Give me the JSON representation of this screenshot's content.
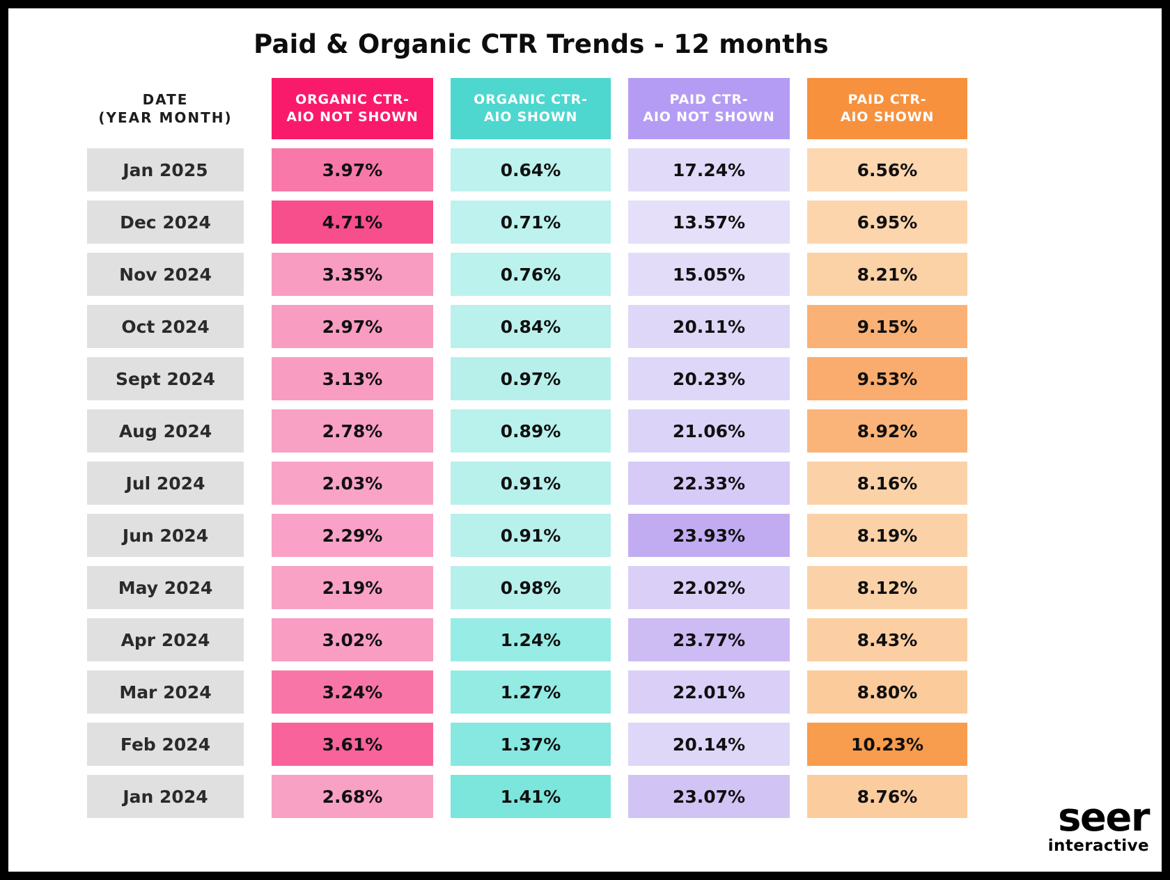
{
  "title": "Paid & Organic CTR Trends - 12 months",
  "colors": {
    "header_organic_not_shown": "#FA1A6C",
    "header_organic_shown": "#4DD7CF",
    "header_paid_not_shown": "#B49CF4",
    "header_paid_shown": "#F7913D",
    "date_cell_bg": "#E0E0E0",
    "frame": "#000000",
    "background": "#FFFFFF"
  },
  "table": {
    "date_header": {
      "line1": "DATE",
      "line2": "(YEAR MONTH)"
    },
    "headers": [
      {
        "line1": "ORGANIC CTR-",
        "line2": "AIO NOT SHOWN",
        "bg": "#FA1A6C"
      },
      {
        "line1": "ORGANIC CTR-",
        "line2": "AIO SHOWN",
        "bg": "#4DD7CF"
      },
      {
        "line1": "PAID CTR-",
        "line2": "AIO NOT SHOWN",
        "bg": "#B49CF4"
      },
      {
        "line1": "PAID CTR-",
        "line2": "AIO SHOWN",
        "bg": "#F7913D"
      }
    ],
    "rows": [
      {
        "date": "Jan 2025",
        "cells": [
          {
            "value": "3.97%",
            "bg": "#F878A9"
          },
          {
            "value": "0.64%",
            "bg": "#BDF2EE"
          },
          {
            "value": "17.24%",
            "bg": "#E1DAF9"
          },
          {
            "value": "6.56%",
            "bg": "#FCD7B0"
          }
        ]
      },
      {
        "date": "Dec 2024",
        "cells": [
          {
            "value": "4.71%",
            "bg": "#F74E8C"
          },
          {
            "value": "0.71%",
            "bg": "#BDF2EE"
          },
          {
            "value": "13.57%",
            "bg": "#E5DFFA"
          },
          {
            "value": "6.95%",
            "bg": "#FCD5AD"
          }
        ]
      },
      {
        "date": "Nov 2024",
        "cells": [
          {
            "value": "3.35%",
            "bg": "#F99CC2"
          },
          {
            "value": "0.76%",
            "bg": "#BBF2ED"
          },
          {
            "value": "15.05%",
            "bg": "#E3DCF9"
          },
          {
            "value": "8.21%",
            "bg": "#FBD1A6"
          }
        ]
      },
      {
        "date": "Oct 2024",
        "cells": [
          {
            "value": "2.97%",
            "bg": "#F99CC2"
          },
          {
            "value": "0.84%",
            "bg": "#BAF1EC"
          },
          {
            "value": "20.11%",
            "bg": "#DFD7F8"
          },
          {
            "value": "9.15%",
            "bg": "#FAB175"
          }
        ]
      },
      {
        "date": "Sept 2024",
        "cells": [
          {
            "value": "3.13%",
            "bg": "#F99CC2"
          },
          {
            "value": "0.97%",
            "bg": "#B7F0EB"
          },
          {
            "value": "20.23%",
            "bg": "#DFD7F8"
          },
          {
            "value": "9.53%",
            "bg": "#F9AC6D"
          }
        ]
      },
      {
        "date": "Aug 2024",
        "cells": [
          {
            "value": "2.78%",
            "bg": "#F9A0C5"
          },
          {
            "value": "0.89%",
            "bg": "#B9F1EC"
          },
          {
            "value": "21.06%",
            "bg": "#DCD3F8"
          },
          {
            "value": "8.92%",
            "bg": "#FAB47A"
          }
        ]
      },
      {
        "date": "Jul 2024",
        "cells": [
          {
            "value": "2.03%",
            "bg": "#F9A3C7"
          },
          {
            "value": "0.91%",
            "bg": "#B8F0EC"
          },
          {
            "value": "22.33%",
            "bg": "#D6CAF6"
          },
          {
            "value": "8.16%",
            "bg": "#FBD2A7"
          }
        ]
      },
      {
        "date": "Jun 2024",
        "cells": [
          {
            "value": "2.29%",
            "bg": "#F9A1C6"
          },
          {
            "value": "0.91%",
            "bg": "#B8F0EC"
          },
          {
            "value": "23.93%",
            "bg": "#C2ACF1"
          },
          {
            "value": "8.19%",
            "bg": "#FBD2A7"
          }
        ]
      },
      {
        "date": "May 2024",
        "cells": [
          {
            "value": "2.19%",
            "bg": "#F9A2C6"
          },
          {
            "value": "0.98%",
            "bg": "#B6F0EB"
          },
          {
            "value": "22.02%",
            "bg": "#DAD0F7"
          },
          {
            "value": "8.12%",
            "bg": "#FBD2A8"
          }
        ]
      },
      {
        "date": "Apr 2024",
        "cells": [
          {
            "value": "3.02%",
            "bg": "#F99DC3"
          },
          {
            "value": "1.24%",
            "bg": "#97ECE5"
          },
          {
            "value": "23.77%",
            "bg": "#CDBBF4"
          },
          {
            "value": "8.43%",
            "bg": "#FBCFA3"
          }
        ]
      },
      {
        "date": "Mar 2024",
        "cells": [
          {
            "value": "3.24%",
            "bg": "#F876A7"
          },
          {
            "value": "1.27%",
            "bg": "#93EBE4"
          },
          {
            "value": "22.01%",
            "bg": "#DAD0F7"
          },
          {
            "value": "8.80%",
            "bg": "#FBCB9C"
          }
        ]
      },
      {
        "date": "Feb 2024",
        "cells": [
          {
            "value": "3.61%",
            "bg": "#F8639B"
          },
          {
            "value": "1.37%",
            "bg": "#86E8E0"
          },
          {
            "value": "20.14%",
            "bg": "#DFD7F8"
          },
          {
            "value": "10.23%",
            "bg": "#F89C4D"
          }
        ]
      },
      {
        "date": "Jan 2024",
        "cells": [
          {
            "value": "2.68%",
            "bg": "#F9A0C5"
          },
          {
            "value": "1.41%",
            "bg": "#7CE5DC"
          },
          {
            "value": "23.07%",
            "bg": "#D2C3F5"
          },
          {
            "value": "8.76%",
            "bg": "#FBCC9E"
          }
        ]
      }
    ]
  },
  "logo": {
    "main": "seer",
    "sub": "interactive"
  },
  "chart_data": {
    "type": "table",
    "title": "Paid & Organic CTR Trends - 12 months",
    "categories": [
      "Jan 2025",
      "Dec 2024",
      "Nov 2024",
      "Oct 2024",
      "Sept 2024",
      "Aug 2024",
      "Jul 2024",
      "Jun 2024",
      "May 2024",
      "Apr 2024",
      "Mar 2024",
      "Feb 2024",
      "Jan 2024"
    ],
    "series": [
      {
        "name": "Organic CTR - AIO Not Shown",
        "values": [
          3.97,
          4.71,
          3.35,
          2.97,
          3.13,
          2.78,
          2.03,
          2.29,
          2.19,
          3.02,
          3.24,
          3.61,
          2.68
        ]
      },
      {
        "name": "Organic CTR - AIO Shown",
        "values": [
          0.64,
          0.71,
          0.76,
          0.84,
          0.97,
          0.89,
          0.91,
          0.91,
          0.98,
          1.24,
          1.27,
          1.37,
          1.41
        ]
      },
      {
        "name": "Paid CTR - AIO Not Shown",
        "values": [
          17.24,
          13.57,
          15.05,
          20.11,
          20.23,
          21.06,
          22.33,
          23.93,
          22.02,
          23.77,
          22.01,
          20.14,
          23.07
        ]
      },
      {
        "name": "Paid CTR - AIO Shown",
        "values": [
          6.56,
          6.95,
          8.21,
          9.15,
          9.53,
          8.92,
          8.16,
          8.19,
          8.12,
          8.43,
          8.8,
          10.23,
          8.76
        ]
      }
    ],
    "unit": "%",
    "xlabel": "Date (Year Month)",
    "ylabel": "CTR",
    "legend_position": "column headers",
    "notes": "Heatmap-shaded table: darker cell tint = higher value within each column"
  }
}
